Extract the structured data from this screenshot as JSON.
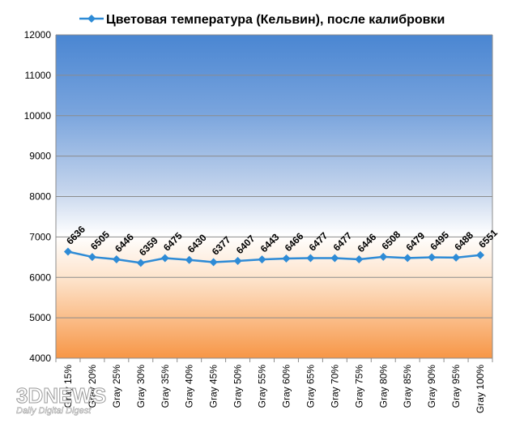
{
  "chart_data": {
    "type": "line",
    "title": "",
    "xlabel": "",
    "ylabel": "",
    "ylim": [
      4000,
      12000
    ],
    "yticks": [
      4000,
      5000,
      6000,
      7000,
      8000,
      9000,
      10000,
      11000,
      12000
    ],
    "grid": true,
    "legend_position": "top",
    "categories": [
      "Gray 15%",
      "Gray 20%",
      "Gray 25%",
      "Gray 30%",
      "Gray 35%",
      "Gray 40%",
      "Gray 45%",
      "Gray 50%",
      "Gray 55%",
      "Gray 60%",
      "Gray 65%",
      "Gray 70%",
      "Gray 75%",
      "Gray 80%",
      "Gray 85%",
      "Gray 90%",
      "Gray 95%",
      "Gray 100%"
    ],
    "series": [
      {
        "name": "Цветовая температура (Кельвин), после калибровки",
        "color": "#2e8bd6",
        "values": [
          6636,
          6505,
          6446,
          6359,
          6475,
          6430,
          6377,
          6407,
          6443,
          6466,
          6477,
          6477,
          6446,
          6508,
          6479,
          6495,
          6488,
          6551
        ]
      }
    ]
  },
  "watermark": {
    "logo": "3DNEWS",
    "tagline": "Daily Digital Digest"
  }
}
